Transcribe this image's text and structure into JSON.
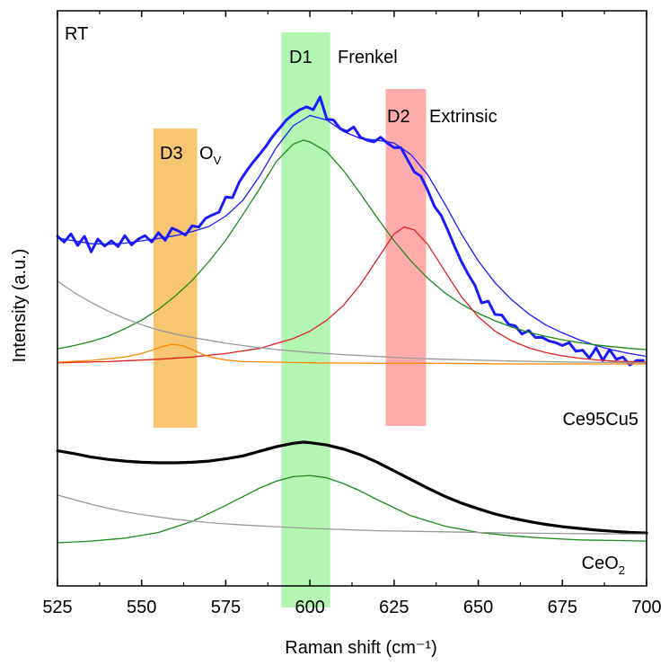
{
  "chart_data": {
    "type": "line",
    "title": "",
    "xlabel": "Raman shift (cm⁻¹)",
    "ylabel": "Intensity (a.u.)",
    "xlim": [
      525,
      700
    ],
    "ylim": [
      0,
      1
    ],
    "y_ticks_labeled": false,
    "x_ticks": [
      525,
      550,
      575,
      600,
      625,
      650,
      675,
      700
    ],
    "grid": false,
    "corner_label": "RT",
    "bands": [
      {
        "id": "D3",
        "label": "D3",
        "desc_main": "O",
        "desc_sub": "V",
        "x_start": 553.5,
        "x_end": 566.5,
        "color": "#f5a623",
        "opacity": 0.65
      },
      {
        "id": "D1",
        "label": "D1",
        "desc_main": "Frenkel",
        "desc_sub": "",
        "x_start": 591.5,
        "x_end": 606,
        "color": "#66ee66",
        "opacity": 0.5
      },
      {
        "id": "D2",
        "label": "D2",
        "desc_main": "Extrinsic",
        "desc_sub": "",
        "x_start": 622.5,
        "x_end": 634.5,
        "color": "#ff6666",
        "opacity": 0.55
      }
    ],
    "sample_labels": [
      {
        "text_main": "Ce95Cu5",
        "text_sub": "",
        "color": "#1a1aff"
      },
      {
        "text_main": "CeO",
        "text_sub": "2",
        "color": "#000000"
      }
    ],
    "series": [
      {
        "id": "ce95cu5-measured",
        "group": "Ce95Cu5",
        "color": "#1a1aff",
        "width": 3,
        "x": [
          525,
          527,
          529,
          531,
          533,
          535,
          537,
          539,
          541,
          543,
          545,
          547,
          549,
          551,
          553,
          555,
          557,
          559,
          561,
          563,
          565,
          567,
          569,
          571,
          573,
          575,
          577,
          579,
          581,
          583,
          585,
          587,
          589,
          591,
          593,
          595,
          597,
          599,
          601,
          603,
          605,
          607,
          609,
          611,
          613,
          615,
          617,
          619,
          621,
          623,
          625,
          627,
          629,
          631,
          633,
          635,
          637,
          639,
          641,
          643,
          645,
          647,
          649,
          651,
          653,
          655,
          657,
          659,
          661,
          663,
          665,
          667,
          669,
          671,
          673,
          675,
          677,
          679,
          681,
          683,
          685,
          687,
          689,
          691,
          693,
          695,
          697,
          699
        ],
        "y": [
          0.608,
          0.598,
          0.612,
          0.592,
          0.608,
          0.581,
          0.603,
          0.591,
          0.6,
          0.59,
          0.609,
          0.593,
          0.603,
          0.609,
          0.598,
          0.614,
          0.601,
          0.622,
          0.617,
          0.61,
          0.626,
          0.624,
          0.639,
          0.645,
          0.65,
          0.676,
          0.675,
          0.702,
          0.72,
          0.736,
          0.75,
          0.765,
          0.782,
          0.796,
          0.81,
          0.82,
          0.828,
          0.833,
          0.828,
          0.85,
          0.812,
          0.81,
          0.795,
          0.79,
          0.798,
          0.78,
          0.775,
          0.772,
          0.78,
          0.77,
          0.762,
          0.762,
          0.741,
          0.72,
          0.712,
          0.688,
          0.66,
          0.644,
          0.618,
          0.59,
          0.564,
          0.542,
          0.523,
          0.492,
          0.495,
          0.472,
          0.471,
          0.455,
          0.452,
          0.438,
          0.444,
          0.432,
          0.432,
          0.426,
          0.423,
          0.418,
          0.423,
          0.408,
          0.41,
          0.396,
          0.414,
          0.392,
          0.411,
          0.394,
          0.398,
          0.384,
          0.392,
          0.392
        ]
      },
      {
        "id": "ce95cu5-fit-envelope",
        "group": "Ce95Cu5",
        "color": "#1a1aff",
        "width": 1.3,
        "x": [
          525,
          530,
          535,
          540,
          545,
          550,
          555,
          560,
          565,
          570,
          575,
          580,
          585,
          590,
          595,
          600,
          605,
          610,
          615,
          620,
          625,
          630,
          635,
          640,
          645,
          650,
          655,
          660,
          665,
          670,
          675,
          680,
          685,
          690,
          695,
          700
        ],
        "y": [
          0.605,
          0.6,
          0.595,
          0.594,
          0.596,
          0.6,
          0.604,
          0.609,
          0.616,
          0.625,
          0.643,
          0.67,
          0.712,
          0.762,
          0.8,
          0.818,
          0.81,
          0.79,
          0.778,
          0.775,
          0.77,
          0.75,
          0.715,
          0.665,
          0.612,
          0.565,
          0.527,
          0.497,
          0.473,
          0.454,
          0.44,
          0.428,
          0.418,
          0.41,
          0.404,
          0.399
        ]
      },
      {
        "id": "ce95cu5-peak-d1",
        "group": "Ce95Cu5",
        "color": "#1a8a1a",
        "width": 1.3,
        "x": [
          525,
          530,
          535,
          540,
          545,
          550,
          555,
          560,
          565,
          570,
          575,
          580,
          585,
          590,
          595,
          598,
          600,
          605,
          610,
          615,
          620,
          625,
          630,
          635,
          640,
          645,
          650,
          655,
          660,
          665,
          670,
          675,
          680,
          685,
          690,
          695,
          700
        ],
        "y": [
          0.412,
          0.418,
          0.425,
          0.434,
          0.447,
          0.462,
          0.481,
          0.504,
          0.531,
          0.564,
          0.601,
          0.645,
          0.69,
          0.738,
          0.768,
          0.775,
          0.772,
          0.755,
          0.722,
          0.682,
          0.64,
          0.6,
          0.565,
          0.535,
          0.51,
          0.49,
          0.474,
          0.461,
          0.45,
          0.441,
          0.434,
          0.428,
          0.423,
          0.419,
          0.416,
          0.413,
          0.411
        ]
      },
      {
        "id": "ce95cu5-peak-d2",
        "group": "Ce95Cu5",
        "color": "#e02020",
        "width": 1.3,
        "x": [
          525,
          540,
          555,
          565,
          575,
          585,
          595,
          600,
          605,
          610,
          615,
          620,
          625,
          628,
          631,
          635,
          640,
          645,
          650,
          655,
          660,
          665,
          670,
          675,
          680,
          685,
          690,
          695,
          700
        ],
        "y": [
          0.388,
          0.39,
          0.394,
          0.398,
          0.404,
          0.413,
          0.43,
          0.443,
          0.462,
          0.488,
          0.524,
          0.568,
          0.612,
          0.624,
          0.619,
          0.594,
          0.548,
          0.503,
          0.468,
          0.443,
          0.426,
          0.414,
          0.406,
          0.4,
          0.396,
          0.393,
          0.391,
          0.39,
          0.389
        ]
      },
      {
        "id": "ce95cu5-peak-d3",
        "group": "Ce95Cu5",
        "color": "#ff8800",
        "width": 1.3,
        "x": [
          525,
          535,
          545,
          550,
          553,
          556,
          559,
          562,
          565,
          568,
          571,
          575,
          580,
          590,
          600,
          620,
          640,
          660,
          680,
          700
        ],
        "y": [
          0.389,
          0.392,
          0.398,
          0.404,
          0.41,
          0.416,
          0.42,
          0.418,
          0.411,
          0.403,
          0.397,
          0.393,
          0.39,
          0.389,
          0.388,
          0.387,
          0.387,
          0.386,
          0.386,
          0.386
        ]
      },
      {
        "id": "ce95cu5-background",
        "group": "Ce95Cu5",
        "color": "#999999",
        "width": 1.3,
        "x": [
          525,
          530,
          535,
          540,
          545,
          550,
          555,
          560,
          565,
          570,
          575,
          580,
          590,
          600,
          610,
          620,
          630,
          640,
          660,
          680,
          700
        ],
        "y": [
          0.53,
          0.51,
          0.493,
          0.478,
          0.465,
          0.454,
          0.445,
          0.438,
          0.432,
          0.427,
          0.422,
          0.418,
          0.411,
          0.406,
          0.402,
          0.399,
          0.396,
          0.394,
          0.391,
          0.389,
          0.388
        ]
      },
      {
        "id": "ceo2-measured",
        "group": "CeO2",
        "color": "#000000",
        "width": 3.2,
        "x": [
          525,
          530,
          535,
          540,
          545,
          550,
          555,
          560,
          565,
          570,
          575,
          580,
          585,
          590,
          595,
          598,
          600,
          605,
          610,
          615,
          620,
          625,
          630,
          635,
          640,
          645,
          650,
          655,
          660,
          665,
          670,
          675,
          680,
          685,
          690,
          695,
          700
        ],
        "y": [
          0.235,
          0.23,
          0.224,
          0.22,
          0.217,
          0.215,
          0.214,
          0.214,
          0.215,
          0.217,
          0.221,
          0.226,
          0.234,
          0.242,
          0.248,
          0.25,
          0.249,
          0.245,
          0.238,
          0.228,
          0.215,
          0.2,
          0.185,
          0.17,
          0.156,
          0.144,
          0.134,
          0.125,
          0.118,
          0.112,
          0.107,
          0.103,
          0.1,
          0.097,
          0.095,
          0.093,
          0.092
        ]
      },
      {
        "id": "ceo2-peak",
        "group": "CeO2",
        "color": "#1a8a1a",
        "width": 1.3,
        "x": [
          525,
          535,
          545,
          555,
          565,
          575,
          585,
          590,
          595,
          600,
          605,
          610,
          615,
          620,
          625,
          630,
          640,
          650,
          660,
          670,
          680,
          690,
          700
        ],
        "y": [
          0.075,
          0.078,
          0.083,
          0.093,
          0.112,
          0.14,
          0.17,
          0.182,
          0.19,
          0.192,
          0.188,
          0.178,
          0.165,
          0.15,
          0.136,
          0.122,
          0.104,
          0.093,
          0.087,
          0.083,
          0.08,
          0.079,
          0.078
        ]
      },
      {
        "id": "ceo2-background",
        "group": "CeO2",
        "color": "#999999",
        "width": 1.3,
        "x": [
          525,
          530,
          535,
          540,
          545,
          550,
          560,
          570,
          580,
          590,
          600,
          610,
          620,
          630,
          640,
          650,
          660,
          680,
          700
        ],
        "y": [
          0.158,
          0.15,
          0.142,
          0.135,
          0.129,
          0.124,
          0.116,
          0.11,
          0.106,
          0.103,
          0.1,
          0.098,
          0.096,
          0.095,
          0.094,
          0.093,
          0.092,
          0.091,
          0.09
        ]
      }
    ]
  }
}
